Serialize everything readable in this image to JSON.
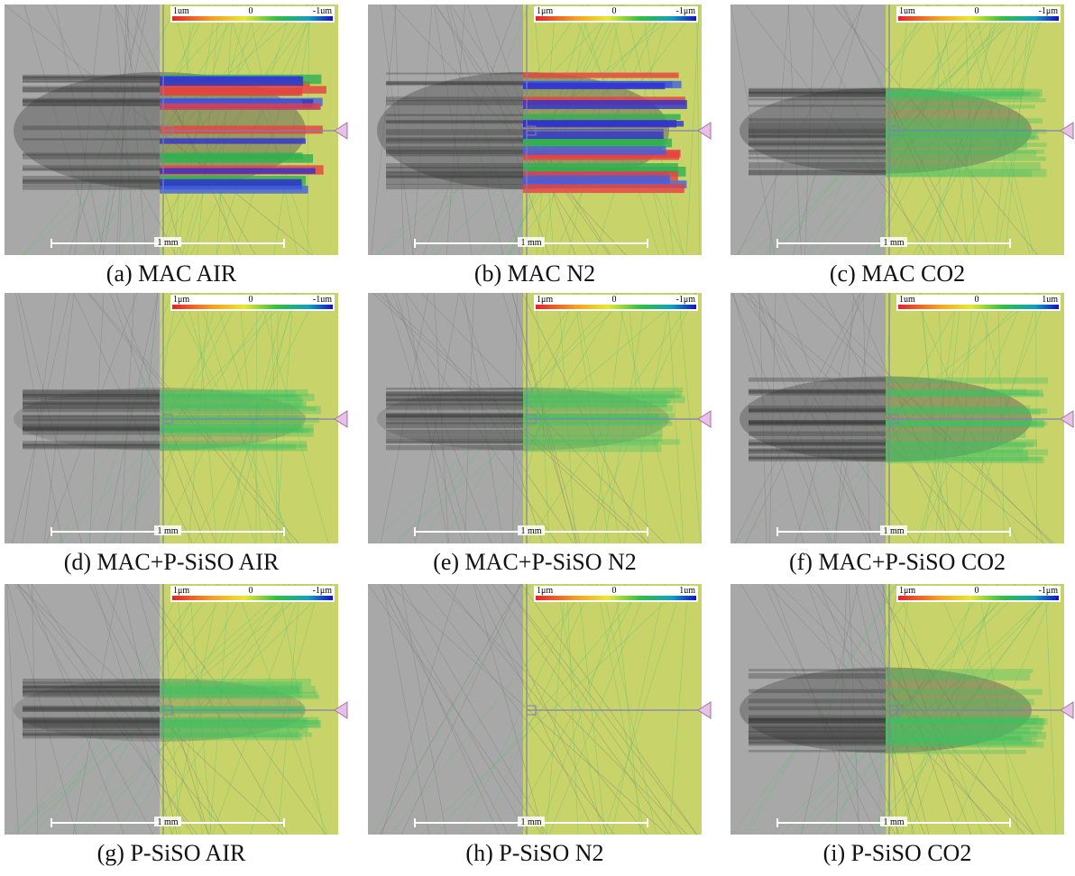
{
  "panels": [
    {
      "caption": "(a) MAC AIR",
      "colorbar": [
        "1um",
        "0",
        "-1um"
      ],
      "scale": "1 mm"
    },
    {
      "caption": "(b) MAC N2",
      "colorbar": [
        "1μm",
        "0",
        "-1μm"
      ],
      "scale": "1 mm"
    },
    {
      "caption": "(c) MAC CO2",
      "colorbar": [
        "1um",
        "0",
        "-1μm"
      ],
      "scale": "1 mm"
    },
    {
      "caption": "(d) MAC+P-SiSO AIR",
      "colorbar": [
        "1μm",
        "0",
        "-1um"
      ],
      "scale": "1 mm"
    },
    {
      "caption": "(e) MAC+P-SiSO N2",
      "colorbar": [
        "1μm",
        "0",
        "-1μm"
      ],
      "scale": "1 mm"
    },
    {
      "caption": "(f) MAC+P-SiSO CO2",
      "colorbar": [
        "1um",
        "0",
        "1um"
      ],
      "scale": "1 mm"
    },
    {
      "caption": "(g) P-SiSO AIR",
      "colorbar": [
        "1μm",
        "0",
        "-1μm"
      ],
      "scale": "1 mm"
    },
    {
      "caption": "(h) P-SiSO N2",
      "colorbar": [
        "1μm",
        "0",
        "1um"
      ],
      "scale": "1 mm"
    },
    {
      "caption": "(i) P-SiSO CO2",
      "colorbar": [
        "1μm",
        "0",
        "-1μm"
      ],
      "scale": "1 mm"
    }
  ]
}
